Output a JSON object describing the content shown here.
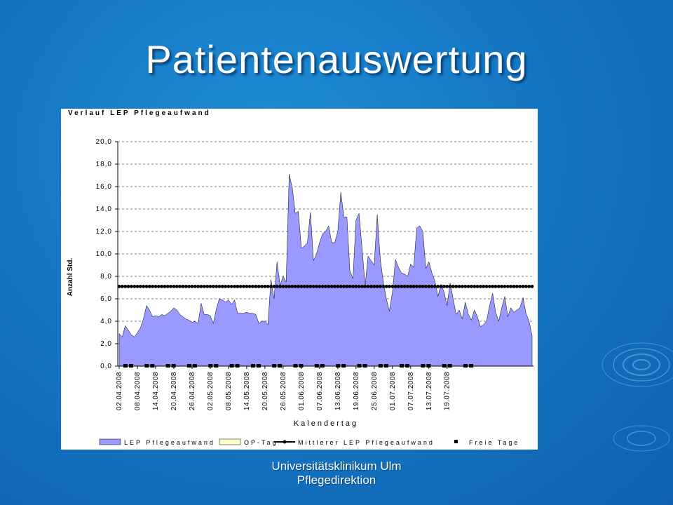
{
  "slide": {
    "title": "Patientenauswertung",
    "footer_line1": "Universitätsklinikum Ulm",
    "footer_line2": "Pflegedirektion"
  },
  "colors": {
    "background": "#1577c4",
    "area_fill": "#9999ff",
    "mean_line": "#000000"
  },
  "chart_data": {
    "type": "area",
    "title": "Verlauf LEP Pflegeaufwand",
    "xlabel": "Kalendertag",
    "ylabel": "Anzahl Std.",
    "ylim": [
      0,
      20
    ],
    "yticks": [
      "0,0",
      "2,0",
      "4,0",
      "6,0",
      "8,0",
      "10,0",
      "12,0",
      "14,0",
      "16,0",
      "18,0",
      "20,0"
    ],
    "grid": true,
    "legend_position": "bottom",
    "x_tick_labels": [
      "02.04.2008",
      "08.04.2008",
      "14.04.2008",
      "20.04.2008",
      "26.04.2008",
      "02.05.2008",
      "08.05.2008",
      "14.05.2008",
      "20.05.2008",
      "26.05.2008",
      "01.06.2008",
      "07.06.2008",
      "13.06.2008",
      "19.06.2008",
      "25.06.2008",
      "01.07.2008",
      "07.07.2008",
      "13.07.2008",
      "19.07.2008"
    ],
    "series": [
      {
        "name": "LEP Pflegeaufwand",
        "kind": "area",
        "values": [
          2.9,
          2.6,
          3.6,
          3.2,
          2.8,
          2.6,
          3.0,
          3.4,
          4.2,
          5.4,
          5.0,
          4.4,
          4.5,
          4.4,
          4.6,
          4.5,
          4.7,
          4.9,
          5.2,
          5.0,
          4.6,
          4.4,
          4.2,
          4.1,
          3.9,
          4.0,
          3.8,
          5.6,
          4.6,
          4.6,
          4.5,
          3.8,
          5.1,
          6.0,
          5.9,
          5.7,
          5.9,
          5.5,
          5.9,
          4.7,
          4.7,
          4.7,
          4.8,
          4.7,
          4.7,
          4.6,
          3.8,
          4.0,
          4.0,
          3.7,
          7.7,
          6.0,
          9.3,
          7.2,
          8.0,
          7.5,
          17.1,
          15.9,
          13.6,
          13.8,
          10.5,
          10.7,
          11.0,
          13.7,
          9.4,
          10.0,
          11.0,
          11.8,
          12.0,
          12.5,
          11.0,
          11.0,
          12.0,
          15.5,
          13.3,
          13.3,
          8.5,
          7.8,
          13.0,
          13.6,
          10.5,
          7.2,
          9.8,
          9.4,
          9.0,
          13.5,
          9.5,
          7.5,
          6.0,
          4.9,
          6.6,
          9.5,
          8.8,
          8.3,
          8.2,
          8.0,
          9.1,
          8.8,
          12.3,
          12.5,
          12.0,
          8.7,
          9.3,
          8.3,
          7.6,
          6.2,
          7.3,
          6.6,
          5.4,
          7.4,
          6.0,
          4.6,
          5.0,
          4.2,
          5.7,
          4.6,
          4.1,
          5.0,
          4.4,
          3.5,
          3.7,
          4.0,
          5.4,
          6.5,
          4.8,
          4.0,
          5.2,
          6.2,
          4.4,
          5.2,
          4.8,
          5.0,
          5.2,
          6.1,
          4.7,
          4.0,
          2.7
        ]
      },
      {
        "name": "OP-Tag",
        "kind": "area",
        "values": []
      },
      {
        "name": "Mittlerer LEP Pflegeaufwand",
        "kind": "line",
        "values": [
          7.1
        ]
      },
      {
        "name": "Freie Tage",
        "kind": "marker",
        "values": [
          0,
          0,
          0,
          0,
          0,
          0,
          0,
          0,
          0,
          0,
          0,
          0,
          0,
          0,
          0,
          0,
          0
        ]
      }
    ]
  }
}
